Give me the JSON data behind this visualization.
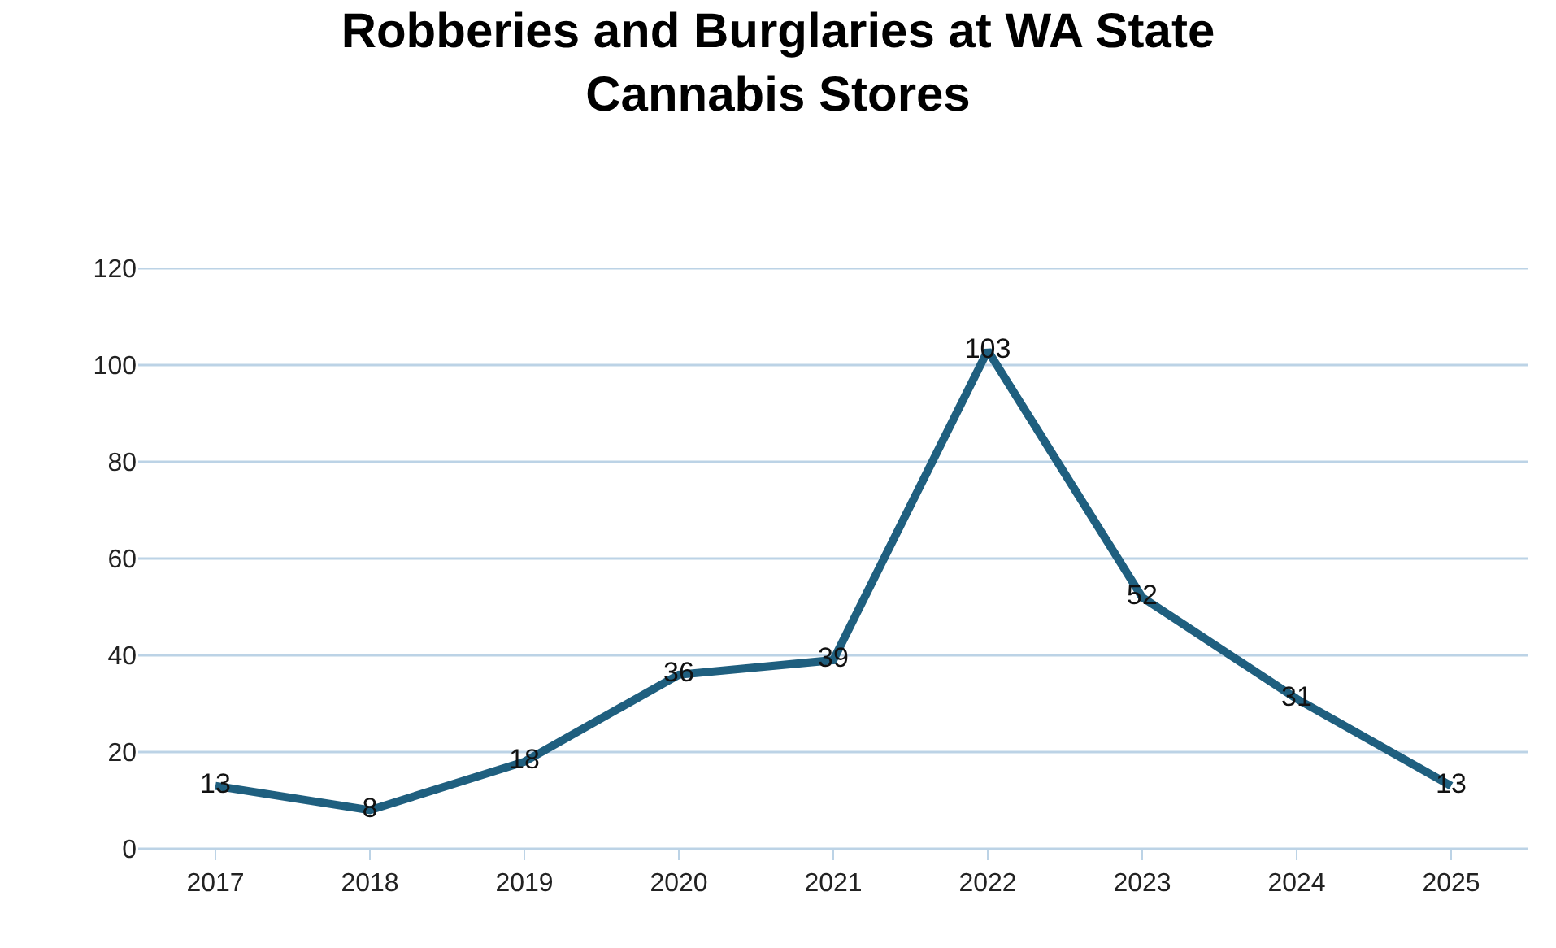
{
  "chart_data": {
    "type": "line",
    "title": "Robberies and Burglaries at WA State\nCannabis Stores",
    "categories": [
      "2017",
      "2018",
      "2019",
      "2020",
      "2021",
      "2022",
      "2023",
      "2024",
      "2025"
    ],
    "values": [
      13,
      8,
      18,
      36,
      39,
      103,
      52,
      31,
      13
    ],
    "color": "#1f5f7f",
    "ylim": [
      0,
      120
    ],
    "yticks": [
      0,
      20,
      40,
      60,
      80,
      100,
      120
    ],
    "grid": "y",
    "data_labels": true,
    "marker": "none",
    "line_style": "solid"
  }
}
